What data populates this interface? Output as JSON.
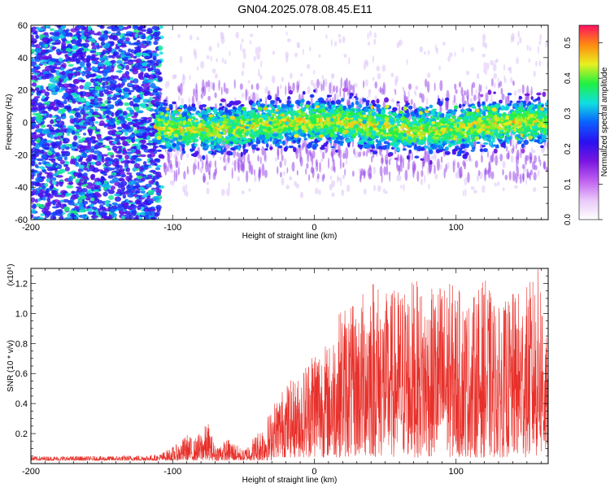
{
  "title": "GN04.2025.078.08.45.E11",
  "colors": {
    "snr_line": "#e8302a",
    "colorbar": [
      "#ffffff",
      "#e8c8f8",
      "#c060f0",
      "#7a16e0",
      "#2a10f0",
      "#0a60ff",
      "#10e0e0",
      "#20f040",
      "#e8f020",
      "#ff8a10",
      "#ff1060"
    ]
  },
  "chart_data": [
    {
      "type": "heatmap",
      "xlabel": "Height of straight line (km)",
      "ylabel": "Frequency (Hz)",
      "xlim": [
        -200,
        165
      ],
      "ylim": [
        -60,
        60
      ],
      "x_ticks": [
        -200,
        -100,
        0,
        100
      ],
      "y_ticks": [
        -60,
        -40,
        -20,
        0,
        20,
        40,
        60
      ],
      "colorbar": {
        "label": "Normalized spectral amplitude",
        "range": [
          0.0,
          0.55
        ],
        "ticks": [
          0.0,
          0.1,
          0.2,
          0.3,
          0.4,
          0.5
        ],
        "tick_labels": [
          "0.0",
          "0.1",
          "0.2",
          "0.3",
          "0.4",
          "0.5"
        ]
      },
      "grid": false
    },
    {
      "type": "line",
      "xlabel": "Height of straight line (km)",
      "ylabel": "SNR (10 * v/v)",
      "y_multiplier": "(x10⁴)",
      "xlim": [
        -200,
        165
      ],
      "ylim": [
        0,
        1.3
      ],
      "x_ticks": [
        -200,
        -100,
        0,
        100
      ],
      "y_ticks": [
        0.2,
        0.4,
        0.6,
        0.8,
        1.0,
        1.2
      ],
      "y_tick_labels": [
        "0.2",
        "0.4",
        "0.6",
        "0.8",
        "1.0",
        "1.2"
      ],
      "series": [
        {
          "x": [
            -200,
            -150,
            -110,
            -95,
            -90,
            -85,
            -80,
            -75,
            -70,
            -60,
            -50,
            -40,
            -30,
            -20,
            -10,
            0,
            10,
            20,
            30,
            40,
            50,
            60,
            70,
            80,
            90,
            100,
            110,
            120,
            130,
            140,
            150,
            160,
            165
          ],
          "y": [
            0.03,
            0.03,
            0.04,
            0.12,
            0.18,
            0.14,
            0.2,
            0.26,
            0.1,
            0.15,
            0.07,
            0.2,
            0.35,
            0.5,
            0.55,
            0.8,
            0.75,
            1.05,
            1.0,
            1.28,
            1.1,
            1.15,
            1.2,
            1.1,
            1.2,
            1.15,
            1.05,
            1.2,
            1.0,
            1.1,
            1.15,
            1.3,
            0.65
          ]
        }
      ],
      "grid": false
    }
  ]
}
